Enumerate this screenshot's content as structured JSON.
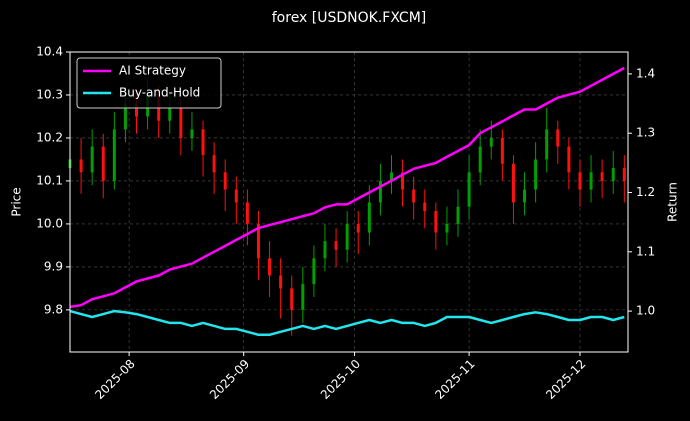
{
  "chart_data": {
    "type": "candlestick",
    "title": "forex [USDNOK.FXCM]",
    "ylabel": "Price",
    "y2label": "Return",
    "x": [
      0,
      3,
      6,
      9,
      12,
      15,
      18,
      21,
      24,
      27,
      30,
      33,
      36,
      39,
      42,
      45,
      48,
      51,
      54,
      57,
      60,
      63,
      66,
      69,
      72,
      75,
      78,
      81,
      84,
      87,
      90,
      93,
      96,
      99,
      102,
      105,
      108,
      111,
      114,
      117,
      120,
      123,
      126,
      129,
      132,
      135,
      138,
      141,
      144,
      147,
      150
    ],
    "open": [
      10.13,
      10.15,
      10.12,
      10.18,
      10.1,
      10.22,
      10.28,
      10.25,
      10.3,
      10.24,
      10.27,
      10.2,
      10.22,
      10.16,
      10.12,
      10.08,
      10.05,
      10.0,
      9.92,
      9.88,
      9.85,
      9.8,
      9.86,
      9.92,
      9.96,
      9.94,
      10.0,
      9.98,
      10.05,
      10.1,
      10.12,
      10.08,
      10.05,
      10.03,
      9.98,
      10.0,
      10.04,
      10.12,
      10.18,
      10.2,
      10.14,
      10.05,
      10.08,
      10.15,
      10.22,
      10.18,
      10.12,
      10.08,
      10.12,
      10.1,
      10.13
    ],
    "high": [
      10.34,
      10.2,
      10.22,
      10.21,
      10.26,
      10.32,
      10.31,
      10.34,
      10.32,
      10.31,
      10.29,
      10.26,
      10.24,
      10.19,
      10.15,
      10.11,
      10.08,
      10.03,
      9.96,
      9.92,
      9.88,
      9.9,
      9.95,
      10.0,
      9.99,
      10.03,
      10.03,
      10.09,
      10.14,
      10.16,
      10.15,
      10.11,
      10.08,
      10.05,
      10.04,
      10.08,
      10.16,
      10.22,
      10.24,
      10.22,
      10.16,
      10.12,
      10.19,
      10.27,
      10.24,
      10.2,
      10.15,
      10.16,
      10.15,
      10.17,
      10.16
    ],
    "low": [
      10.08,
      10.07,
      10.09,
      10.06,
      10.08,
      10.19,
      10.21,
      10.22,
      10.2,
      10.21,
      10.16,
      10.17,
      10.11,
      10.07,
      10.03,
      10.0,
      9.95,
      9.87,
      9.83,
      9.78,
      9.74,
      9.77,
      9.83,
      9.89,
      9.9,
      9.91,
      9.93,
      9.95,
      10.02,
      10.07,
      10.04,
      10.01,
      9.99,
      9.94,
      9.95,
      9.97,
      10.01,
      10.09,
      10.15,
      10.1,
      10.0,
      10.02,
      10.05,
      10.12,
      10.14,
      10.08,
      10.04,
      10.05,
      10.06,
      10.07,
      10.05
    ],
    "close": [
      10.15,
      10.12,
      10.18,
      10.1,
      10.22,
      10.28,
      10.25,
      10.3,
      10.24,
      10.27,
      10.2,
      10.22,
      10.16,
      10.12,
      10.08,
      10.05,
      10.0,
      9.92,
      9.88,
      9.85,
      9.8,
      9.86,
      9.92,
      9.96,
      9.94,
      10.0,
      9.98,
      10.05,
      10.1,
      10.12,
      10.08,
      10.05,
      10.03,
      9.98,
      10.0,
      10.04,
      10.12,
      10.18,
      10.2,
      10.14,
      10.05,
      10.08,
      10.15,
      10.22,
      10.18,
      10.12,
      10.08,
      10.12,
      10.1,
      10.13,
      10.1
    ],
    "up_color": "#00a000",
    "down_color": "#ff1010",
    "series": [
      {
        "name": "AI Strategy",
        "color": "#ff00ff",
        "axis": "y2",
        "values": [
          1.007,
          1.01,
          1.02,
          1.025,
          1.03,
          1.04,
          1.05,
          1.055,
          1.06,
          1.07,
          1.075,
          1.08,
          1.09,
          1.1,
          1.11,
          1.12,
          1.13,
          1.14,
          1.145,
          1.15,
          1.155,
          1.16,
          1.165,
          1.175,
          1.18,
          1.18,
          1.19,
          1.2,
          1.21,
          1.22,
          1.23,
          1.24,
          1.245,
          1.25,
          1.26,
          1.27,
          1.28,
          1.3,
          1.31,
          1.32,
          1.33,
          1.34,
          1.34,
          1.35,
          1.36,
          1.365,
          1.37,
          1.38,
          1.39,
          1.4,
          1.41
        ]
      },
      {
        "name": "Buy-and-Hold",
        "color": "#22e5ee",
        "axis": "y2",
        "values": [
          1.0,
          0.995,
          0.99,
          0.995,
          1.0,
          0.998,
          0.995,
          0.99,
          0.985,
          0.98,
          0.98,
          0.975,
          0.98,
          0.975,
          0.97,
          0.97,
          0.965,
          0.96,
          0.96,
          0.965,
          0.97,
          0.975,
          0.97,
          0.975,
          0.97,
          0.975,
          0.98,
          0.985,
          0.98,
          0.985,
          0.98,
          0.98,
          0.975,
          0.98,
          0.99,
          0.99,
          0.99,
          0.985,
          0.98,
          0.985,
          0.99,
          0.995,
          0.998,
          0.995,
          0.99,
          0.985,
          0.985,
          0.99,
          0.99,
          0.985,
          0.99
        ]
      }
    ],
    "xlim": [
      0,
      151
    ],
    "xticks": [
      {
        "value": 16,
        "label": "2025-08"
      },
      {
        "value": 47,
        "label": "2025-09"
      },
      {
        "value": 77,
        "label": "2025-10"
      },
      {
        "value": 108,
        "label": "2025-11"
      },
      {
        "value": 138,
        "label": "2025-12"
      }
    ],
    "ylim": [
      9.702,
      10.4
    ],
    "yticks": [
      9.8,
      9.9,
      {
        "value": 10,
        "label": "10.0"
      },
      10.1,
      10.2,
      10.3,
      10.4
    ],
    "y2lim": [
      0.931,
      1.437
    ],
    "y2ticks": [
      {
        "value": 1,
        "label": "1.0"
      },
      1.1,
      1.2,
      1.3,
      1.4
    ],
    "grid": true,
    "legend": "upper left"
  }
}
